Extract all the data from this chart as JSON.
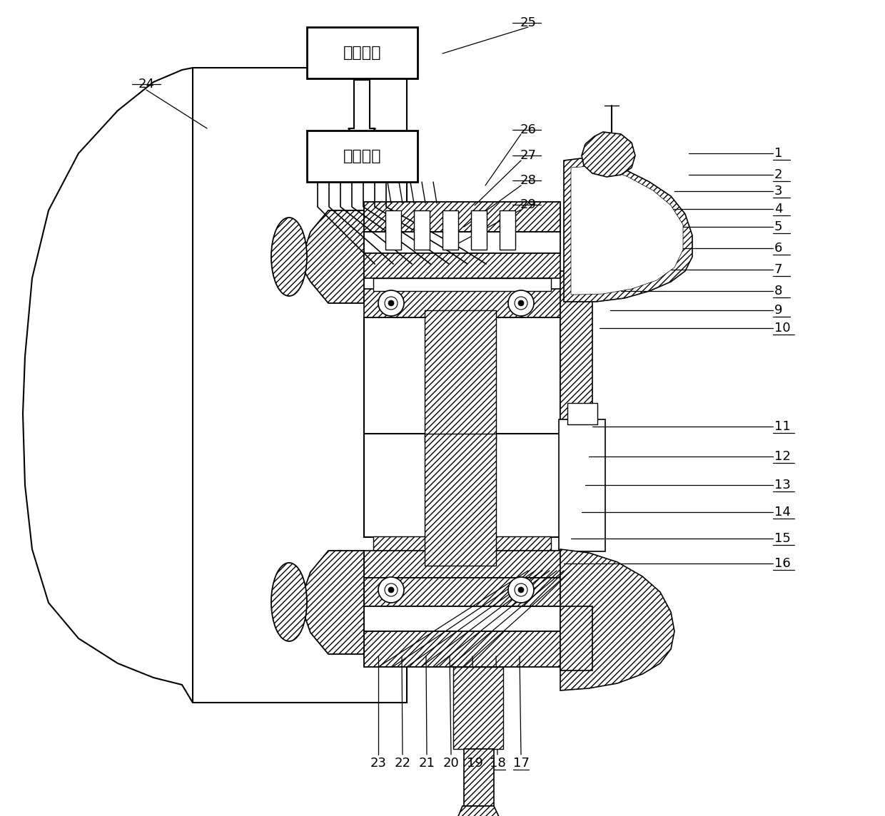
{
  "figsize": [
    12.4,
    11.44
  ],
  "dpi": 100,
  "bg_color": "#ffffff",
  "box1_text": "测控系统",
  "box2_text": "液压系统",
  "right_labels": [
    "1",
    "2",
    "3",
    "4",
    "5",
    "6",
    "7",
    "8",
    "9",
    "10",
    "11",
    "12",
    "13",
    "14",
    "15",
    "16"
  ],
  "bottom_labels": [
    "17",
    "18",
    "19",
    "20",
    "21",
    "22",
    "23"
  ],
  "top_labels": [
    "25",
    "26",
    "27",
    "28",
    "29"
  ],
  "label_24": "24"
}
